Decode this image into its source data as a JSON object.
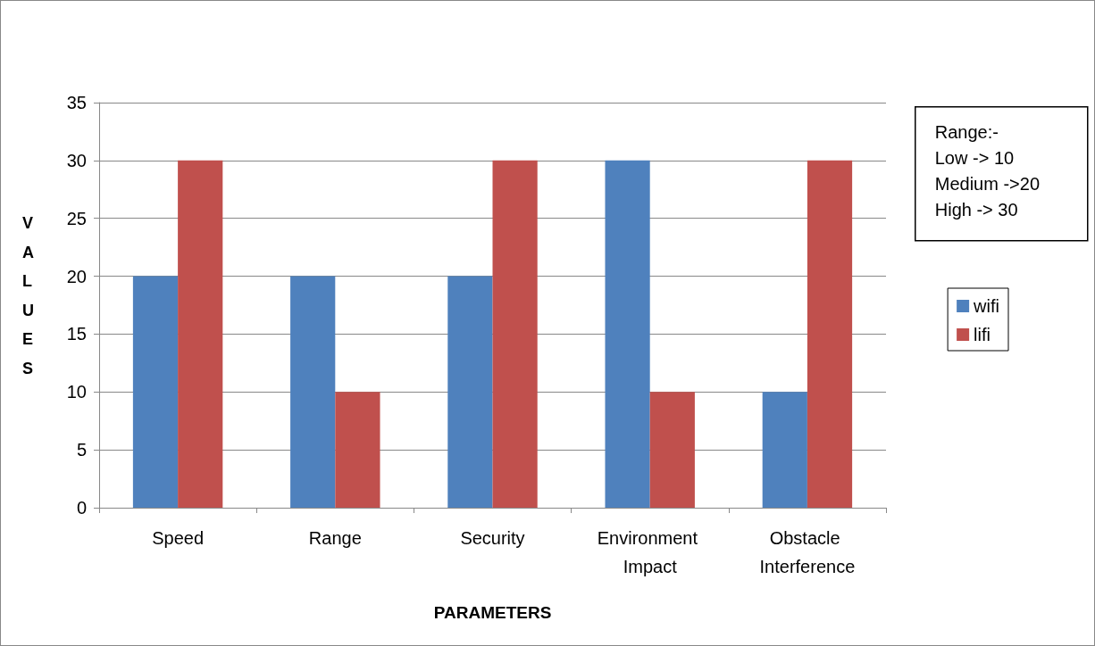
{
  "chart_data": {
    "type": "bar",
    "categories": [
      "Speed",
      "Range",
      "Security",
      "Environment Impact",
      "Obstacle Interference"
    ],
    "series": [
      {
        "name": "wifi",
        "color": "#4f81bd",
        "values": [
          20,
          20,
          20,
          30,
          10
        ]
      },
      {
        "name": "lifi",
        "color": "#c0504d",
        "values": [
          30,
          10,
          30,
          10,
          30
        ]
      }
    ],
    "xlabel": "PARAMETERS",
    "ylabel": "VALUES",
    "ylim": [
      0,
      35
    ],
    "yticks": [
      0,
      5,
      10,
      15,
      20,
      25,
      30,
      35
    ],
    "grid": "y",
    "legend": "right",
    "annotations": [
      "Range:-",
      "Low -> 10",
      "Medium ->20",
      "High -> 30"
    ]
  }
}
